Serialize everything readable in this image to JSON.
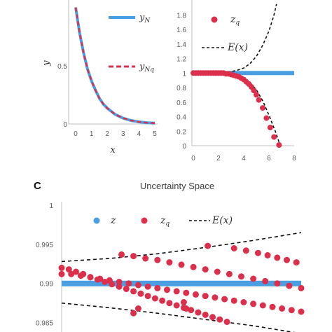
{
  "colors": {
    "blue": "#4a9fe3",
    "red": "#dc2f4c",
    "black": "#111111",
    "axis": "#bfbfbf"
  },
  "chart_data": [
    {
      "type": "line",
      "panel": "left-top",
      "xlabel": "x",
      "ylabel": "y",
      "xticks": [
        "0",
        "1",
        "2",
        "3",
        "4",
        "5"
      ],
      "yticks": [
        "0",
        "0.5"
      ],
      "xlim": [
        0,
        5
      ],
      "ylim": [
        0,
        1.1
      ],
      "x": [
        0,
        0.25,
        0.5,
        0.75,
        1,
        1.25,
        1.5,
        1.75,
        2,
        2.5,
        3,
        3.5,
        4,
        4.5,
        5
      ],
      "series": [
        {
          "name": "y_N",
          "legend_main": "y",
          "legend_sub": "N",
          "style": "solid",
          "values": [
            1.0,
            0.78,
            0.61,
            0.47,
            0.37,
            0.29,
            0.22,
            0.17,
            0.135,
            0.082,
            0.05,
            0.03,
            0.018,
            0.011,
            0.007
          ]
        },
        {
          "name": "y_Nq",
          "legend_main": "y",
          "legend_sub": "Nq",
          "style": "dashed",
          "values": [
            1.0,
            0.78,
            0.61,
            0.47,
            0.37,
            0.29,
            0.22,
            0.17,
            0.135,
            0.082,
            0.05,
            0.03,
            0.018,
            0.011,
            0.007
          ]
        }
      ]
    },
    {
      "type": "scatter",
      "panel": "right-top",
      "xticks": [
        "0",
        "2",
        "4",
        "6",
        "8"
      ],
      "yticks": [
        "0",
        "0.2",
        "0.4",
        "0.6",
        "0.8",
        "1",
        "1.2",
        "1.4",
        "1.6",
        "1.8"
      ],
      "xlim": [
        0,
        8
      ],
      "ylim": [
        0,
        1.9
      ],
      "series": [
        {
          "name": "z",
          "style": "line",
          "points": [
            [
              0,
              1
            ],
            [
              8,
              1
            ]
          ]
        },
        {
          "name": "z_q",
          "legend_main": "z",
          "legend_sub": "q",
          "points": [
            [
              0.0,
              1.0
            ],
            [
              0.2,
              1.0
            ],
            [
              0.4,
              1.0
            ],
            [
              0.6,
              1.0
            ],
            [
              0.8,
              1.0
            ],
            [
              1.0,
              1.0
            ],
            [
              1.2,
              1.0
            ],
            [
              1.4,
              1.0
            ],
            [
              1.6,
              1.0
            ],
            [
              1.8,
              1.0
            ],
            [
              2.0,
              1.0
            ],
            [
              2.2,
              1.0
            ],
            [
              2.4,
              1.0
            ],
            [
              2.6,
              0.99
            ],
            [
              2.8,
              0.99
            ],
            [
              3.0,
              0.98
            ],
            [
              3.2,
              0.97
            ],
            [
              3.4,
              0.96
            ],
            [
              3.6,
              0.95
            ],
            [
              3.8,
              0.93
            ],
            [
              4.0,
              0.91
            ],
            [
              4.2,
              0.88
            ],
            [
              4.4,
              0.85
            ],
            [
              4.6,
              0.81
            ],
            [
              4.8,
              0.76
            ],
            [
              5.0,
              0.7
            ],
            [
              5.2,
              0.63
            ],
            [
              5.5,
              0.52
            ],
            [
              5.8,
              0.38
            ],
            [
              6.1,
              0.25
            ],
            [
              6.4,
              0.12
            ],
            [
              6.8,
              0.01
            ]
          ]
        },
        {
          "name": "E(x)",
          "legend": "E(x)",
          "style": "dashed",
          "upper": [
            [
              0,
              1.0
            ],
            [
              1,
              1.0
            ],
            [
              2,
              1.0
            ],
            [
              3,
              1.02
            ],
            [
              3.5,
              1.04
            ],
            [
              4,
              1.07
            ],
            [
              4.5,
              1.13
            ],
            [
              5,
              1.23
            ],
            [
              5.5,
              1.38
            ],
            [
              6,
              1.58
            ],
            [
              6.4,
              1.8
            ],
            [
              6.6,
              1.95
            ]
          ],
          "lower": [
            [
              0,
              1.0
            ],
            [
              1,
              1.0
            ],
            [
              2,
              1.0
            ],
            [
              3,
              0.98
            ],
            [
              3.5,
              0.96
            ],
            [
              4,
              0.93
            ],
            [
              4.5,
              0.87
            ],
            [
              5,
              0.77
            ],
            [
              5.5,
              0.62
            ],
            [
              6,
              0.42
            ],
            [
              6.5,
              0.2
            ],
            [
              6.9,
              0.0
            ]
          ]
        }
      ]
    },
    {
      "type": "scatter",
      "panel": "bottom",
      "panel_letter": "C",
      "title": "Uncertainty Space",
      "yticks": [
        "1",
        "0.995",
        "0.99",
        "0.985"
      ],
      "ylim": [
        0.9838,
        1.0
      ],
      "xlim": [
        0,
        1
      ],
      "series": [
        {
          "name": "z",
          "legend": "z",
          "style": "line",
          "points": [
            [
              0,
              0.99
            ],
            [
              1,
              0.99
            ]
          ]
        },
        {
          "name": "z_q",
          "legend_main": "z",
          "legend_sub": "q",
          "points": [
            [
              0.0,
              0.992
            ],
            [
              0.03,
              0.9918
            ],
            [
              0.06,
              0.9915
            ],
            [
              0.09,
              0.9912
            ],
            [
              0.12,
              0.9908
            ],
            [
              0.15,
              0.9905
            ],
            [
              0.18,
              0.9902
            ],
            [
              0.21,
              0.9899
            ],
            [
              0.24,
              0.9896
            ],
            [
              0.27,
              0.9893
            ],
            [
              0.3,
              0.989
            ],
            [
              0.33,
              0.9887
            ],
            [
              0.36,
              0.9884
            ],
            [
              0.39,
              0.9881
            ],
            [
              0.42,
              0.9878
            ],
            [
              0.45,
              0.9875
            ],
            [
              0.48,
              0.9872
            ],
            [
              0.51,
              0.9869
            ],
            [
              0.54,
              0.9866
            ],
            [
              0.57,
              0.9863
            ],
            [
              0.6,
              0.986
            ],
            [
              0.63,
              0.9857
            ],
            [
              0.66,
              0.9854
            ],
            [
              0.69,
              0.9851
            ],
            [
              0.0,
              0.9912
            ],
            [
              0.04,
              0.9912
            ],
            [
              0.08,
              0.991
            ],
            [
              0.12,
              0.9908
            ],
            [
              0.16,
              0.9906
            ],
            [
              0.2,
              0.9904
            ],
            [
              0.24,
              0.9902
            ],
            [
              0.28,
              0.99
            ],
            [
              0.32,
              0.9898
            ],
            [
              0.36,
              0.9896
            ],
            [
              0.4,
              0.9894
            ],
            [
              0.44,
              0.9892
            ],
            [
              0.48,
              0.989
            ],
            [
              0.52,
              0.9888
            ],
            [
              0.56,
              0.9886
            ],
            [
              0.6,
              0.9884
            ],
            [
              0.64,
              0.9882
            ],
            [
              0.68,
              0.988
            ],
            [
              0.72,
              0.9878
            ],
            [
              0.76,
              0.9876
            ],
            [
              0.8,
              0.9874
            ],
            [
              0.84,
              0.9872
            ],
            [
              0.88,
              0.987
            ],
            [
              0.92,
              0.9868
            ],
            [
              0.96,
              0.9866
            ],
            [
              1.0,
              0.9864
            ],
            [
              0.25,
              0.9937
            ],
            [
              0.3,
              0.9935
            ],
            [
              0.35,
              0.9932
            ],
            [
              0.4,
              0.993
            ],
            [
              0.45,
              0.9927
            ],
            [
              0.5,
              0.9924
            ],
            [
              0.55,
              0.9921
            ],
            [
              0.6,
              0.9918
            ],
            [
              0.65,
              0.9915
            ],
            [
              0.7,
              0.9912
            ],
            [
              0.75,
              0.9909
            ],
            [
              0.8,
              0.9906
            ],
            [
              0.85,
              0.9903
            ],
            [
              0.9,
              0.99
            ],
            [
              0.95,
              0.9897
            ],
            [
              1.0,
              0.9894
            ],
            [
              0.61,
              0.9948
            ],
            [
              0.72,
              0.9945
            ],
            [
              0.77,
              0.9942
            ],
            [
              0.82,
              0.9939
            ],
            [
              0.86,
              0.9936
            ],
            [
              0.9,
              0.9933
            ],
            [
              0.94,
              0.993
            ],
            [
              0.98,
              0.9927
            ],
            [
              0.3,
              0.9862
            ],
            [
              0.32,
              0.9868
            ],
            [
              0.51,
              0.9876
            ],
            [
              0.52,
              0.9868
            ]
          ]
        },
        {
          "name": "E(x)",
          "legend": "E(x)",
          "style": "dashed",
          "upper": [
            [
              0,
              0.9928
            ],
            [
              0.2,
              0.9932
            ],
            [
              0.4,
              0.9938
            ],
            [
              0.6,
              0.9946
            ],
            [
              0.8,
              0.9955
            ],
            [
              1.0,
              0.9965
            ]
          ],
          "lower": [
            [
              0,
              0.9875
            ],
            [
              0.2,
              0.9869
            ],
            [
              0.4,
              0.9862
            ],
            [
              0.6,
              0.9854
            ],
            [
              0.8,
              0.9846
            ],
            [
              1.0,
              0.9836
            ]
          ]
        }
      ]
    }
  ]
}
